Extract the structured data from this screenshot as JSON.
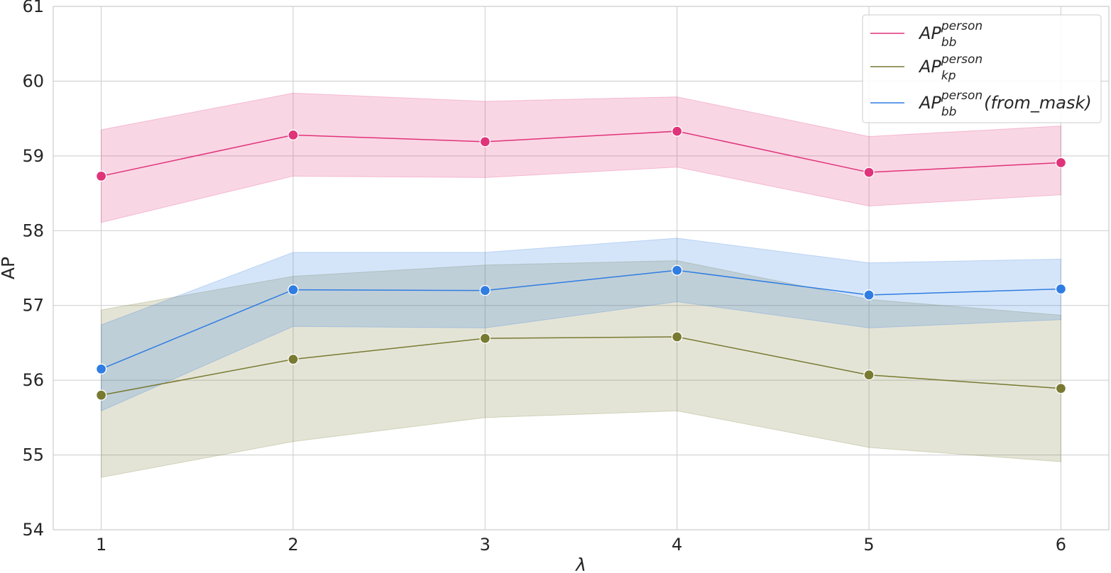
{
  "chart_data": {
    "type": "line",
    "xlabel": "λ",
    "ylabel": "AP",
    "x": [
      1,
      2,
      3,
      4,
      5,
      6
    ],
    "xticks": [
      "1",
      "2",
      "3",
      "4",
      "5",
      "6"
    ],
    "yticks": [
      "54",
      "55",
      "56",
      "57",
      "58",
      "59",
      "60",
      "61"
    ],
    "xlim": [
      0.75,
      6.25
    ],
    "ylim": [
      54,
      61
    ],
    "grid": true,
    "legend_position": "top-right",
    "series": [
      {
        "name": "AP_bb^person",
        "legend": {
          "base": "AP",
          "sub": "bb",
          "sup": "person",
          "suffix": ""
        },
        "color": "#e0337a",
        "values": [
          58.73,
          59.28,
          59.19,
          59.33,
          58.78,
          58.91
        ],
        "lower": [
          58.11,
          58.73,
          58.71,
          58.85,
          58.33,
          58.48
        ],
        "upper": [
          59.35,
          59.84,
          59.73,
          59.79,
          59.26,
          59.4
        ]
      },
      {
        "name": "AP_kp^person",
        "legend": {
          "base": "AP",
          "sub": "kp",
          "sup": "person",
          "suffix": ""
        },
        "color": "#787a32",
        "values": [
          55.8,
          56.28,
          56.56,
          56.58,
          56.07,
          55.89
        ],
        "lower": [
          54.7,
          55.18,
          55.5,
          55.59,
          55.1,
          54.91
        ],
        "upper": [
          56.94,
          57.39,
          57.54,
          57.6,
          57.08,
          56.87
        ]
      },
      {
        "name": "AP_bb^person(from_mask)",
        "legend": {
          "base": "AP",
          "sub": "bb",
          "sup": "person",
          "suffix": "(from_mask)"
        },
        "color": "#2f7de2",
        "values": [
          56.15,
          57.21,
          57.2,
          57.47,
          57.14,
          57.22
        ],
        "lower": [
          55.59,
          56.72,
          56.7,
          57.05,
          56.7,
          56.81
        ],
        "upper": [
          56.74,
          57.71,
          57.71,
          57.9,
          57.57,
          57.62
        ]
      }
    ]
  }
}
